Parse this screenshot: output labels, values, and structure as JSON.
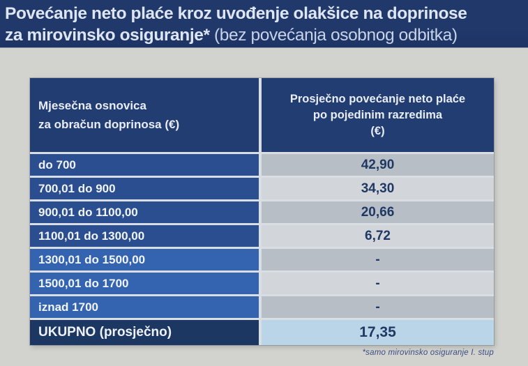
{
  "title": {
    "line1": "Povećanje neto plaće kroz uvođenje olakšice na doprinose",
    "line2_bold": "za mirovinsko osiguranje*",
    "line2_regular": " (bez povećanja osobnog odbitka)"
  },
  "table": {
    "header": {
      "col1_line1": "Mjesečna osnovica",
      "col1_line2": "za obračun doprinosa (€)",
      "col2_line1": "Prosječno povećanje neto plaće",
      "col2_line2": "po pojedinim razredima",
      "col2_line3": "(€)"
    },
    "rows": [
      {
        "range": "do 700",
        "value": "42,90",
        "highlighted": false
      },
      {
        "range": "700,01 do 900",
        "value": "34,30",
        "highlighted": false
      },
      {
        "range": "900,01 do 1100,00",
        "value": "20,66",
        "highlighted": false
      },
      {
        "range": "1100,01 do 1300,00",
        "value": "6,72",
        "highlighted": false
      },
      {
        "range": "1300,01 do 1500,00",
        "value": "-",
        "highlighted": true
      },
      {
        "range": "1500,01 do 1700",
        "value": "-",
        "highlighted": true
      },
      {
        "range": "iznad 1700",
        "value": "-",
        "highlighted": true
      }
    ],
    "total": {
      "label": "UKUPNO (prosječno)",
      "value": "17,35"
    }
  },
  "footnote": "*samo mirovinsko osiguranje I. stup",
  "colors": {
    "title_background": "#21386b",
    "header_background": "#223d72",
    "row_label_dark": "#2b4e91",
    "row_label_bright": "#3464b0",
    "value_cell_gray": "#b7bec6",
    "value_cell_light": "#d2d6da",
    "total_label_background": "#1d3763",
    "total_value_background": "#bad4e8",
    "value_text": "#1f3864",
    "page_background": "#d2d2cf"
  },
  "chart_data": {
    "type": "table",
    "title": "Povećanje neto plaće kroz uvođenje olakšice na doprinose za mirovinsko osiguranje* (bez povećanja osobnog odbitka)",
    "columns": [
      "Mjesečna osnovica za obračun doprinosa (€)",
      "Prosječno povećanje neto plaće po pojedinim razredima (€)"
    ],
    "rows": [
      [
        "do 700",
        "42,90"
      ],
      [
        "700,01 do 900",
        "34,30"
      ],
      [
        "900,01 do 1100,00",
        "20,66"
      ],
      [
        "1100,01 do 1300,00",
        "6,72"
      ],
      [
        "1300,01 do 1500,00",
        "-"
      ],
      [
        "1500,01 do 1700",
        "-"
      ],
      [
        "iznad 1700",
        "-"
      ],
      [
        "UKUPNO (prosječno)",
        "17,35"
      ]
    ],
    "footnote": "*samo mirovinsko osiguranje I. stup"
  }
}
